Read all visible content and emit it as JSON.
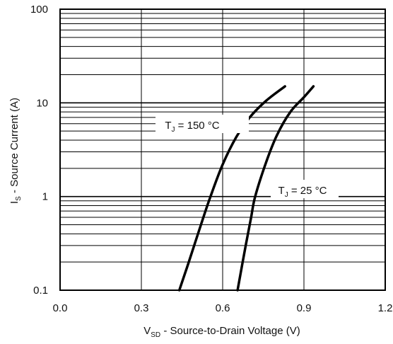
{
  "chart_data": {
    "type": "line",
    "title": "",
    "xlabel": {
      "prefix": "V",
      "sub": "SD",
      "suffix": " - Source-to-Drain Voltage (V)"
    },
    "ylabel": {
      "prefix": "I",
      "sub": "S",
      "suffix": " - Source Current (A)"
    },
    "xlim": [
      0.0,
      1.2
    ],
    "ylim": [
      0.1,
      100
    ],
    "yscale": "log",
    "grid": true,
    "x_ticks": [
      {
        "value": 0.0,
        "label": "0.0"
      },
      {
        "value": 0.3,
        "label": "0.3"
      },
      {
        "value": 0.6,
        "label": "0.6"
      },
      {
        "value": 0.9,
        "label": "0.9"
      },
      {
        "value": 1.2,
        "label": "1.2"
      }
    ],
    "y_ticks": [
      {
        "value": 0.1,
        "label": "0.1"
      },
      {
        "value": 1,
        "label": "1"
      },
      {
        "value": 10,
        "label": "10"
      },
      {
        "value": 100,
        "label": "100"
      }
    ],
    "series": [
      {
        "label_prefix": "T",
        "label_sub": "J",
        "label_suffix": " = 150 °C",
        "color": "#000000",
        "points": [
          [
            0.44,
            0.1
          ],
          [
            0.475,
            0.2
          ],
          [
            0.52,
            0.5
          ],
          [
            0.555,
            1.0
          ],
          [
            0.6,
            2.2
          ],
          [
            0.65,
            4.3
          ],
          [
            0.7,
            7.0
          ],
          [
            0.76,
            10.5
          ],
          [
            0.83,
            15.0
          ]
        ]
      },
      {
        "label_prefix": "T",
        "label_sub": "J",
        "label_suffix": " = 25 °C",
        "color": "#000000",
        "points": [
          [
            0.655,
            0.1
          ],
          [
            0.685,
            0.3
          ],
          [
            0.705,
            0.6
          ],
          [
            0.72,
            1.0
          ],
          [
            0.76,
            2.3
          ],
          [
            0.8,
            4.5
          ],
          [
            0.85,
            8.0
          ],
          [
            0.9,
            11.5
          ],
          [
            0.935,
            15.0
          ]
        ]
      }
    ]
  }
}
